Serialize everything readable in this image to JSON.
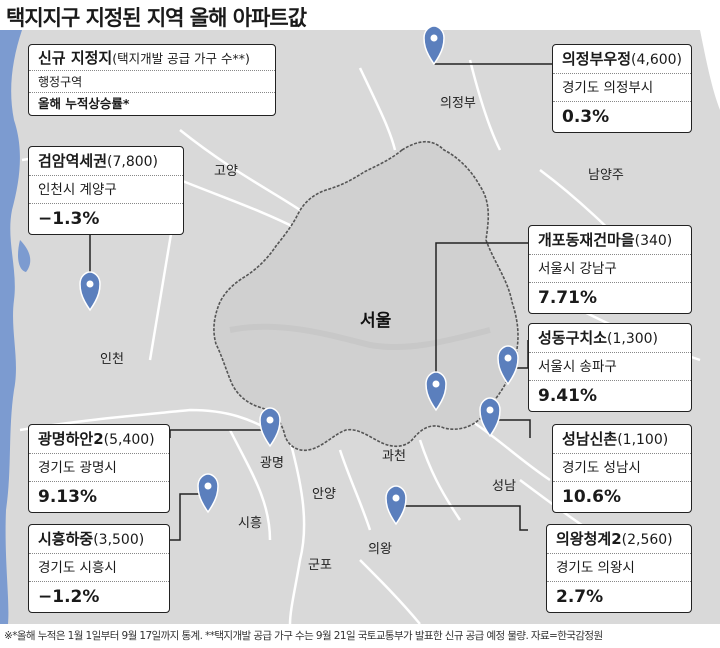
{
  "title": "택지지구 지정된 지역 올해 아파트값",
  "legend": {
    "line1_bold": "신규 지정지",
    "line1_rest": "(택지개발 공급 가구 수**)",
    "line2": "행정구역",
    "line3": "올해 누적상승률*"
  },
  "places": {
    "uijeongbu": "의정부",
    "goyang": "고양",
    "namyangju": "남양주",
    "seoul": "서울",
    "incheon": "인천",
    "gwangmyeong": "광명",
    "gwacheon": "과천",
    "anyang": "안양",
    "siheung": "시흥",
    "seongnam": "성남",
    "uiwang": "의왕",
    "gunpo": "군포"
  },
  "sites": [
    {
      "name": "의정부우정",
      "units": "(4,600)",
      "district": "경기도 의정부시",
      "rate": "0.3%"
    },
    {
      "name": "검암역세권",
      "units": "(7,800)",
      "district": "인천시 계양구",
      "rate": "−1.3%"
    },
    {
      "name": "개포동재건마을",
      "units": "(340)",
      "district": "서울시 강남구",
      "rate": "7.71%"
    },
    {
      "name": "성동구치소",
      "units": "(1,300)",
      "district": "서울시 송파구",
      "rate": "9.41%"
    },
    {
      "name": "광명하안2",
      "units": "(5,400)",
      "district": "경기도 광명시",
      "rate": "9.13%"
    },
    {
      "name": "성남신촌",
      "units": "(1,100)",
      "district": "경기도 성남시",
      "rate": "10.6%"
    },
    {
      "name": "시흥하중",
      "units": "(3,500)",
      "district": "경기도 시흥시",
      "rate": "−1.2%"
    },
    {
      "name": "의왕청계2",
      "units": "(2,560)",
      "district": "경기도 의왕시",
      "rate": "2.7%"
    }
  ],
  "colors": {
    "land": "#d9d9d9",
    "sea": "#7c9bd0",
    "pin": "#5b7fbd",
    "boundary": "#ffffff",
    "seoul_border": "#555555"
  },
  "icons": {
    "pin": "map-pin-icon"
  },
  "footnote": "※*올해 누적은 1월 1일부터 9월 17일까지 통계. **택지개발 공급 가구 수는 9월 21일 국토교통부가 발표한 신규 공급 예정 물량. 자료=한국감정원"
}
